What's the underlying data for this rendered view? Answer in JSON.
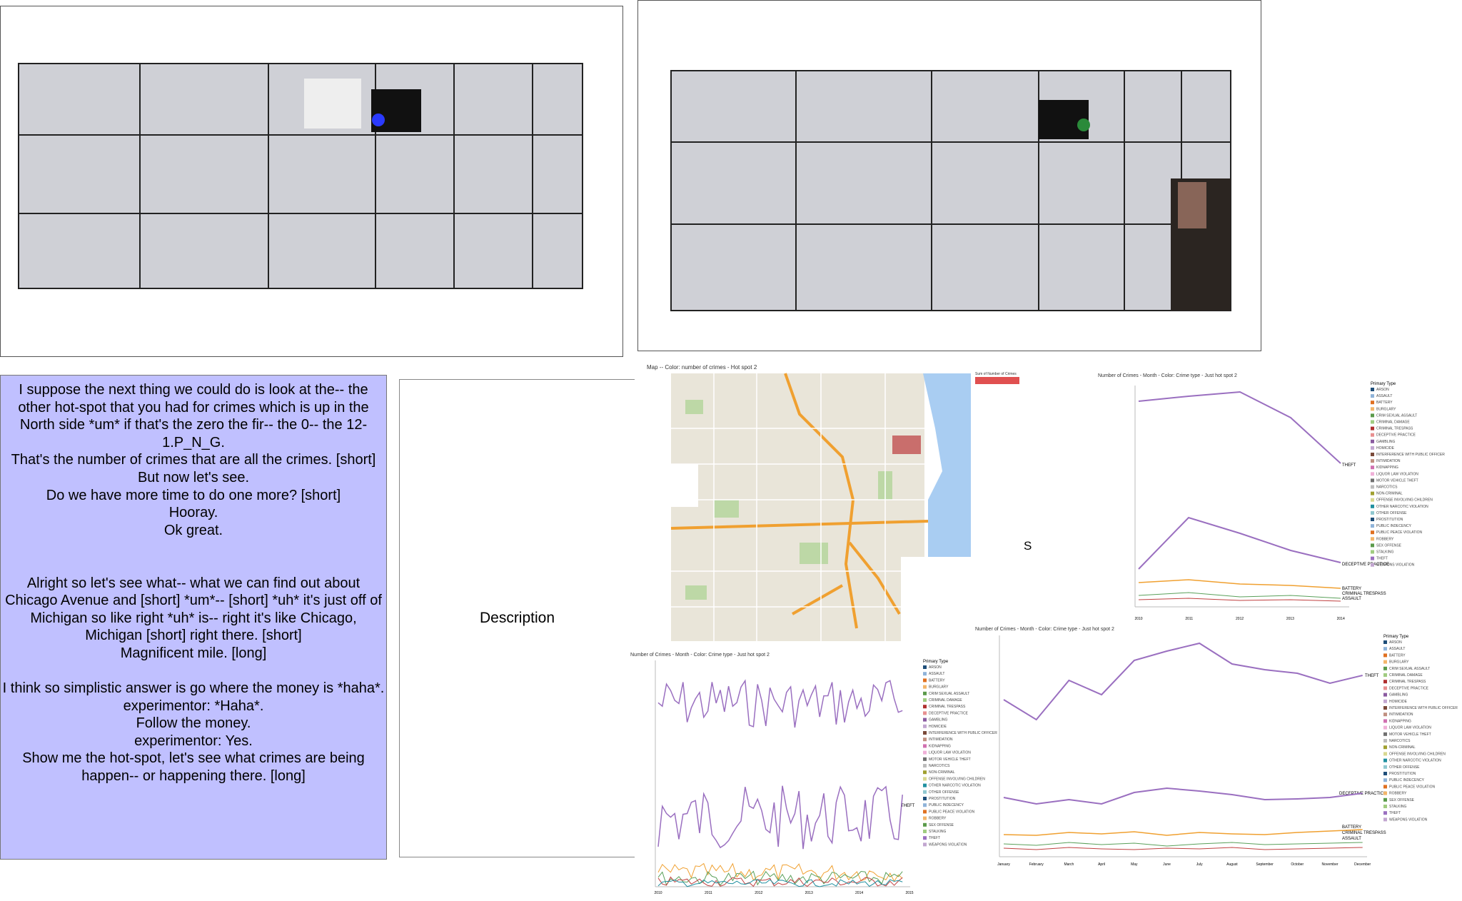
{
  "transcript": [
    "I suppose the next thing we could do is look at the-- the other hot-spot that you had for crimes which is up in the North side *um* if that's the zero the fir-- the 0-- the 12-1.P_N_G.",
    "That's the number of crimes that are all the crimes. [short]",
    "But now let's see.",
    "Do we have more time to do one more? [short]",
    "Hooray.",
    "Ok great.",
    "",
    "",
    "Alright so let's see what-- what we can find out about Chicago Avenue and [short] *um*-- [short] *uh* it's just off of Michigan so like right *uh* is-- right it's like Chicago, Michigan [short] right there. [short]",
    "Magnificent mile. [long]",
    "",
    "I think so simplistic answer is go where the money is *haha*.",
    "experimentor: *Haha*.",
    "Follow the money.",
    "experimentor: Yes.",
    "Show me the hot-spot, let's see what crimes are being happen-- or happening there. [long]"
  ],
  "description": "Description",
  "map": {
    "title": "Map -- Color: number of crimes - Hot spot 2",
    "legend_title": "Sum of Number of Crimes"
  },
  "stray": "S",
  "chart_title": "Number of Crimes - Month - Color: Crime type - Just hot spot 2",
  "legend_title": "Primary Type",
  "crime_types": [
    "ARSON",
    "ASSAULT",
    "BATTERY",
    "BURGLARY",
    "CRIM SEXUAL ASSAULT",
    "CRIMINAL DAMAGE",
    "CRIMINAL TRESPASS",
    "DECEPTIVE PRACTICE",
    "GAMBLING",
    "HOMICIDE",
    "INTERFERENCE WITH PUBLIC OFFICER",
    "INTIMIDATION",
    "KIDNAPPING",
    "LIQUOR LAW VIOLATION",
    "MOTOR VEHICLE THEFT",
    "NARCOTICS",
    "NON-CRIMINAL",
    "OFFENSE INVOLVING CHILDREN",
    "OTHER NARCOTIC VIOLATION",
    "OTHER OFFENSE",
    "PROSTITUTION",
    "PUBLIC INDECENCY",
    "PUBLIC PEACE VIOLATION",
    "ROBBERY",
    "SEX OFFENSE",
    "STALKING",
    "THEFT",
    "WEAPONS VIOLATION"
  ],
  "years_top": [
    "2010",
    "2011",
    "2012",
    "2013",
    "2014"
  ],
  "years_bottom": [
    "2010",
    "2011",
    "2012",
    "2013",
    "2014",
    "2015"
  ],
  "months": [
    "January",
    "February",
    "March",
    "April",
    "May",
    "June",
    "July",
    "August",
    "September",
    "October",
    "November",
    "December"
  ],
  "line_labels": {
    "theft": "THEFT",
    "deceptive": "DECEPTIVE PRACTICE",
    "battery": "BATTERY",
    "trespass": "CRIMINAL TRESPASS",
    "assault": "ASSAULT"
  }
}
